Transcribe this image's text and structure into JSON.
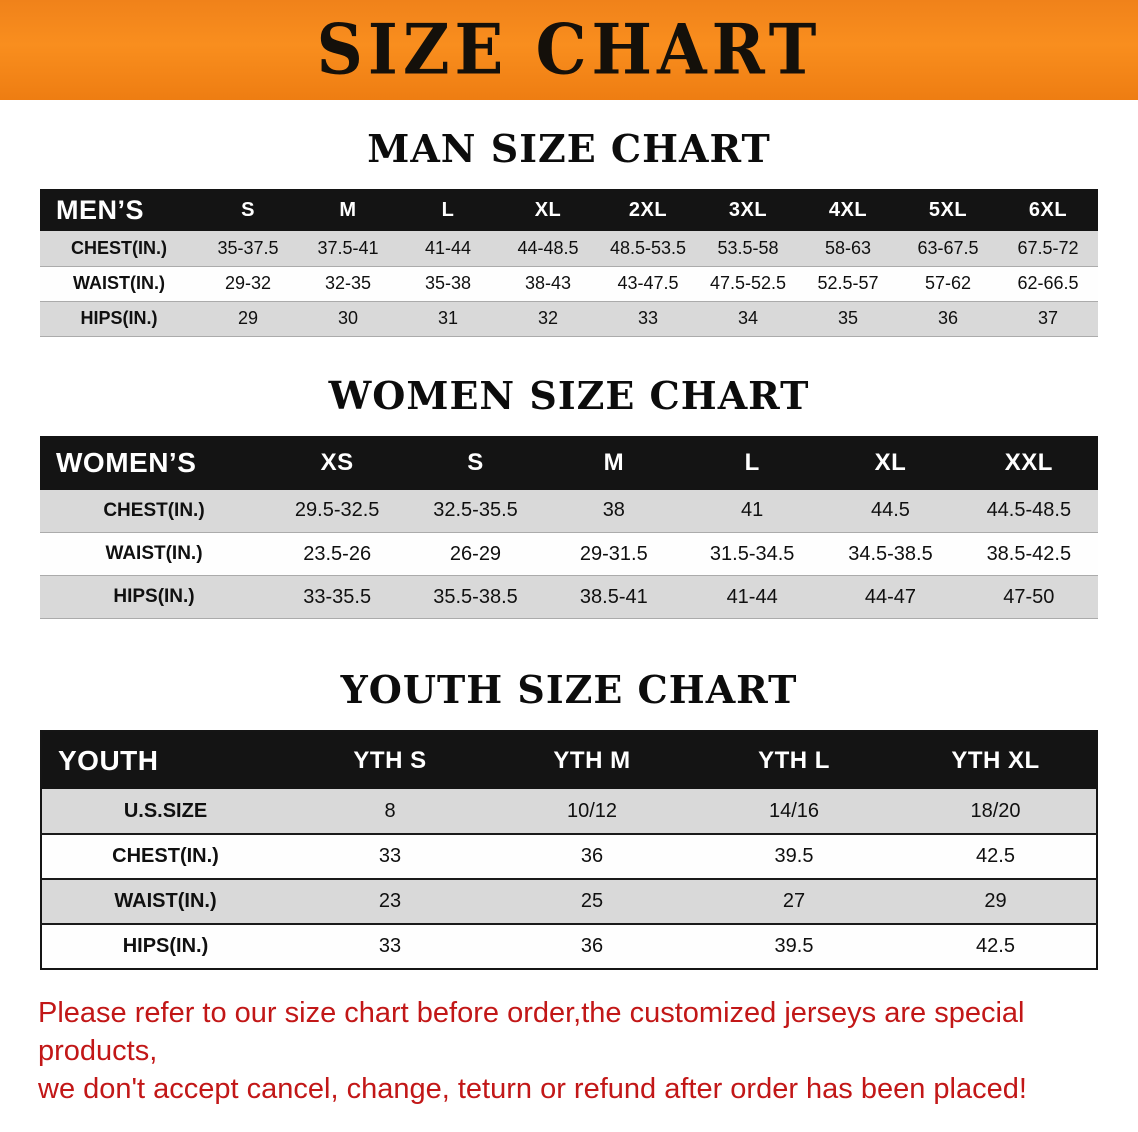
{
  "banner": {
    "title": "SIZE CHART"
  },
  "colors": {
    "banner_orange": "#f6861d",
    "table_header_black": "#141414",
    "stripe_gray": "#d9d9d9",
    "notice_red": "#c21717"
  },
  "sections": [
    {
      "heading": "MAN SIZE CHART",
      "table": {
        "header": [
          "MEN’S",
          "S",
          "M",
          "L",
          "XL",
          "2XL",
          "3XL",
          "4XL",
          "5XL",
          "6XL"
        ],
        "rows": [
          [
            "CHEST(IN.)",
            "35-37.5",
            "37.5-41",
            "41-44",
            "44-48.5",
            "48.5-53.5",
            "53.5-58",
            "58-63",
            "63-67.5",
            "67.5-72"
          ],
          [
            "WAIST(IN.)",
            "29-32",
            "32-35",
            "35-38",
            "38-43",
            "43-47.5",
            "47.5-52.5",
            "52.5-57",
            "57-62",
            "62-66.5"
          ],
          [
            "HIPS(IN.)",
            "29",
            "30",
            "31",
            "32",
            "33",
            "34",
            "35",
            "36",
            "37"
          ]
        ]
      }
    },
    {
      "heading": "WOMEN SIZE CHART",
      "table": {
        "header": [
          "WOMEN’S",
          "XS",
          "S",
          "M",
          "L",
          "XL",
          "XXL"
        ],
        "rows": [
          [
            "CHEST(IN.)",
            "29.5-32.5",
            "32.5-35.5",
            "38",
            "41",
            "44.5",
            "44.5-48.5"
          ],
          [
            "WAIST(IN.)",
            "23.5-26",
            "26-29",
            "29-31.5",
            "31.5-34.5",
            "34.5-38.5",
            "38.5-42.5"
          ],
          [
            "HIPS(IN.)",
            "33-35.5",
            "35.5-38.5",
            "38.5-41",
            "41-44",
            "44-47",
            "47-50"
          ]
        ]
      }
    },
    {
      "heading": "YOUTH SIZE CHART",
      "table": {
        "header": [
          "YOUTH",
          "YTH S",
          "YTH M",
          "YTH L",
          "YTH XL"
        ],
        "rows": [
          [
            "U.S.SIZE",
            "8",
            "10/12",
            "14/16",
            "18/20"
          ],
          [
            "CHEST(IN.)",
            "33",
            "36",
            "39.5",
            "42.5"
          ],
          [
            "WAIST(IN.)",
            "23",
            "25",
            "27",
            "29"
          ],
          [
            "HIPS(IN.)",
            "33",
            "36",
            "39.5",
            "42.5"
          ]
        ]
      }
    }
  ],
  "footer": {
    "line1": "Please refer to our size chart before order,the customized jerseys are special products,",
    "line2": "we don't accept cancel, change, teturn or refund after order has been placed!"
  }
}
